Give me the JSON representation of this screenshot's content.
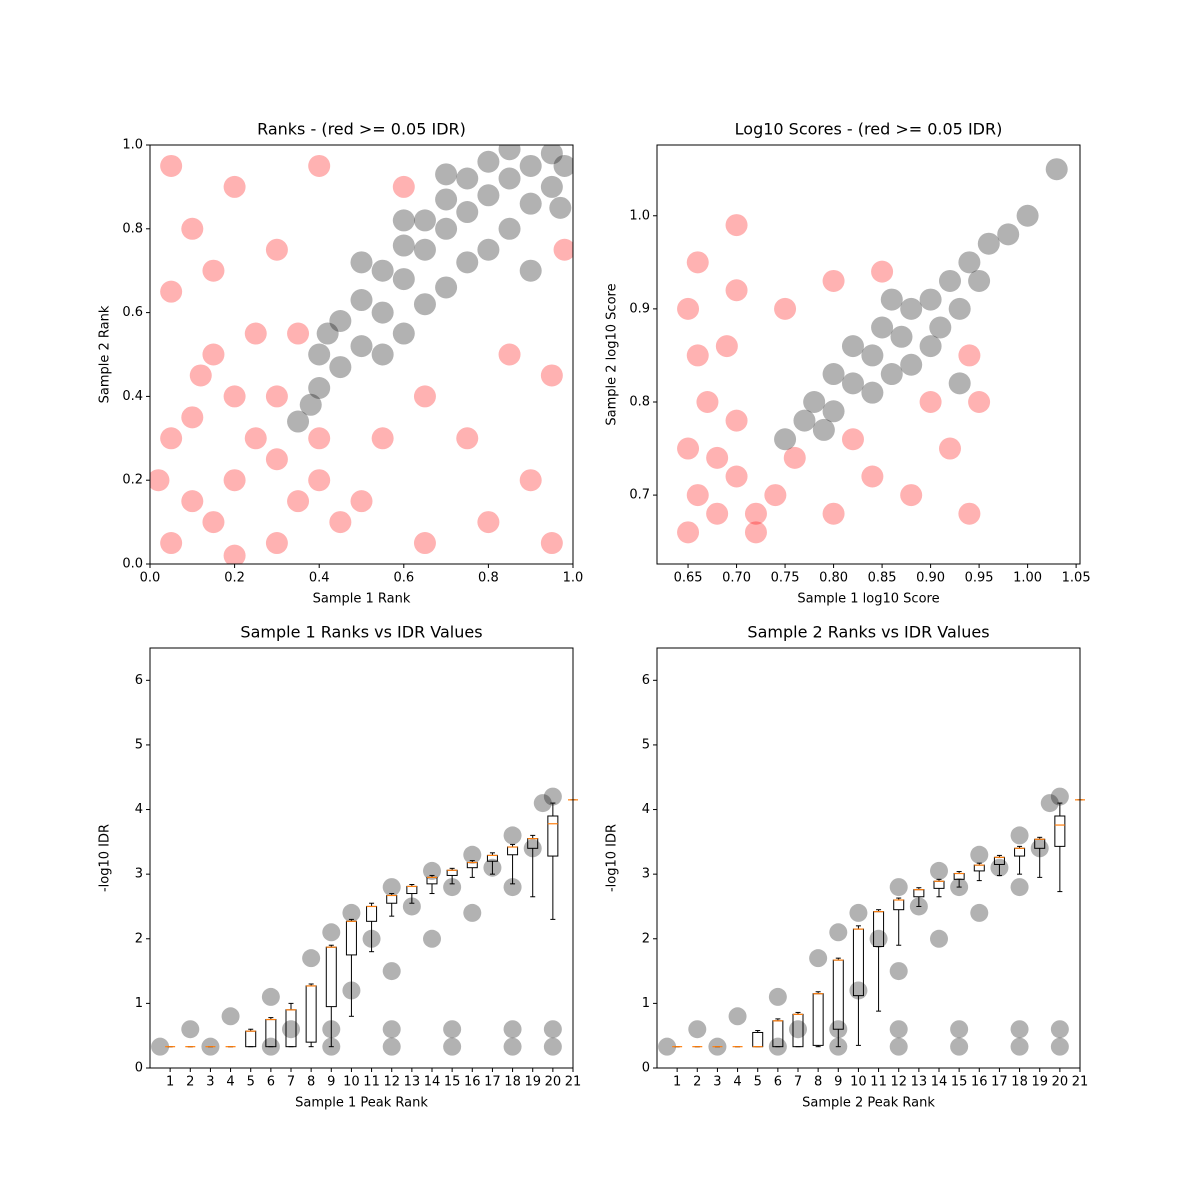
{
  "chart_data": [
    {
      "type": "scatter",
      "title": "Ranks - (red >= 0.05 IDR)",
      "x_label": "Sample 1 Rank",
      "y_label": "Sample 2 Rank",
      "xlim": [
        0,
        1
      ],
      "ylim": [
        0,
        1
      ],
      "xticks": [
        {
          "value": 0,
          "label": "0.0"
        },
        0.2,
        0.4,
        0.6,
        0.8,
        {
          "value": 1,
          "label": "1.0"
        }
      ],
      "yticks": [
        {
          "value": 0,
          "label": "0.0"
        },
        0.2,
        0.4,
        0.6,
        0.8,
        {
          "value": 1,
          "label": "1.0"
        }
      ],
      "series": [
        {
          "color": "#ff0000",
          "x": [
            0.05,
            0.1,
            0.15,
            0.2,
            0.25,
            0.3,
            0.05,
            0.1,
            0.3,
            0.35,
            0.2,
            0.4,
            0.15,
            0.5,
            0.25,
            0.55,
            0.05,
            0.65,
            0.1,
            0.8,
            0.2,
            0.9,
            0.3,
            0.75,
            0.4,
            0.95,
            0.05,
            0.95,
            0.6,
            0.85,
            0.3,
            0.4,
            0.12,
            0.45,
            0.02,
            0.2,
            0.35,
            0.65,
            0.98,
            0.15
          ],
          "y": [
            0.05,
            0.15,
            0.1,
            0.2,
            0.3,
            0.25,
            0.3,
            0.35,
            0.05,
            0.15,
            0.4,
            0.2,
            0.5,
            0.15,
            0.55,
            0.3,
            0.65,
            0.05,
            0.8,
            0.1,
            0.9,
            0.2,
            0.75,
            0.3,
            0.95,
            0.45,
            0.95,
            0.05,
            0.9,
            0.5,
            0.4,
            0.3,
            0.45,
            0.1,
            0.2,
            0.02,
            0.55,
            0.4,
            0.75,
            0.7
          ]
        },
        {
          "color": "#000000",
          "x": [
            0.35,
            0.4,
            0.4,
            0.45,
            0.45,
            0.5,
            0.5,
            0.55,
            0.55,
            0.6,
            0.6,
            0.6,
            0.65,
            0.65,
            0.65,
            0.7,
            0.7,
            0.7,
            0.75,
            0.75,
            0.75,
            0.8,
            0.8,
            0.8,
            0.85,
            0.85,
            0.85,
            0.9,
            0.9,
            0.95,
            0.95,
            0.98,
            0.5,
            0.6,
            0.9,
            0.55,
            0.38,
            0.42,
            0.7,
            0.97
          ],
          "y": [
            0.34,
            0.42,
            0.5,
            0.47,
            0.58,
            0.52,
            0.63,
            0.6,
            0.7,
            0.55,
            0.68,
            0.76,
            0.62,
            0.75,
            0.82,
            0.66,
            0.8,
            0.87,
            0.72,
            0.84,
            0.92,
            0.75,
            0.88,
            0.96,
            0.8,
            0.92,
            0.99,
            0.86,
            0.95,
            0.9,
            0.98,
            0.95,
            0.72,
            0.82,
            0.7,
            0.5,
            0.38,
            0.55,
            0.93,
            0.85
          ]
        }
      ]
    },
    {
      "type": "scatter",
      "title": "Log10 Scores - (red >= 0.05 IDR)",
      "x_label": "Sample 1 log10 Score",
      "y_label": "Sample 2 log10 Score",
      "xlim": [
        0.618,
        1.054
      ],
      "ylim": [
        0.626,
        1.076
      ],
      "xticks": [
        0.65,
        {
          "value": 0.7,
          "label": "0.70"
        },
        0.75,
        {
          "value": 0.8,
          "label": "0.80"
        },
        0.85,
        {
          "value": 0.9,
          "label": "0.90"
        },
        0.95,
        {
          "value": 1,
          "label": "1.00"
        },
        1.05
      ],
      "yticks": [
        0.7,
        0.8,
        0.9,
        {
          "value": 1,
          "label": "1.0"
        }
      ],
      "series": [
        {
          "color": "#ff0000",
          "x": [
            0.65,
            0.66,
            0.68,
            0.7,
            0.72,
            0.65,
            0.67,
            0.66,
            0.65,
            0.66,
            0.7,
            0.74,
            0.76,
            0.8,
            0.84,
            0.88,
            0.92,
            0.94,
            0.95,
            0.9,
            0.7,
            0.75,
            0.8,
            0.85,
            0.69,
            0.72,
            0.68,
            0.7,
            0.94,
            0.82
          ],
          "y": [
            0.66,
            0.7,
            0.68,
            0.72,
            0.66,
            0.75,
            0.8,
            0.85,
            0.9,
            0.95,
            0.78,
            0.7,
            0.74,
            0.68,
            0.72,
            0.7,
            0.75,
            0.68,
            0.8,
            0.8,
            0.92,
            0.9,
            0.93,
            0.94,
            0.86,
            0.68,
            0.74,
            0.99,
            0.85,
            0.76
          ]
        },
        {
          "color": "#000000",
          "x": [
            0.75,
            0.77,
            0.78,
            0.8,
            0.8,
            0.82,
            0.82,
            0.84,
            0.84,
            0.85,
            0.86,
            0.87,
            0.88,
            0.88,
            0.9,
            0.9,
            0.91,
            0.92,
            0.93,
            0.94,
            0.95,
            0.96,
            0.98,
            1.0,
            1.03,
            0.86,
            0.93,
            0.79
          ],
          "y": [
            0.76,
            0.78,
            0.8,
            0.79,
            0.83,
            0.82,
            0.86,
            0.81,
            0.85,
            0.88,
            0.83,
            0.87,
            0.9,
            0.84,
            0.86,
            0.91,
            0.88,
            0.93,
            0.9,
            0.95,
            0.93,
            0.97,
            0.98,
            1.0,
            1.05,
            0.91,
            0.82,
            0.77
          ]
        }
      ]
    },
    {
      "type": "box",
      "title": "Sample 1 Ranks vs IDR Values",
      "x_label": "Sample 1 Peak Rank",
      "y_label": "-log10 IDR",
      "xlim": [
        0,
        21
      ],
      "ylim": [
        0,
        6.5
      ],
      "xticks": [
        1,
        2,
        3,
        4,
        5,
        6,
        7,
        8,
        9,
        10,
        11,
        12,
        13,
        14,
        15,
        16,
        17,
        18,
        19,
        20,
        21
      ],
      "yticks": [
        0,
        1,
        2,
        3,
        4,
        5,
        6
      ],
      "series": [
        {
          "color": "#000000",
          "x": [
            0.5,
            3,
            6,
            9,
            12,
            15,
            18,
            20,
            2,
            4,
            6,
            8,
            9,
            10,
            12,
            14,
            16,
            18,
            19.5,
            20,
            7,
            9,
            12,
            15,
            18,
            20,
            10,
            12,
            14,
            16,
            18,
            11,
            13,
            15,
            17,
            19
          ],
          "y": [
            0.33,
            0.33,
            0.33,
            0.33,
            0.33,
            0.33,
            0.33,
            0.33,
            0.6,
            0.8,
            1.1,
            1.7,
            2.1,
            2.4,
            2.8,
            3.05,
            3.3,
            3.6,
            4.1,
            4.2,
            0.6,
            0.6,
            0.6,
            0.6,
            0.6,
            0.6,
            1.2,
            1.5,
            2.0,
            2.4,
            2.8,
            2.0,
            2.5,
            2.8,
            3.1,
            3.4
          ]
        }
      ],
      "boxes": {
        "positions": [
          1,
          2,
          3,
          4,
          5,
          6,
          7,
          8,
          9,
          10,
          11,
          12,
          13,
          14,
          15,
          16,
          17,
          18,
          19,
          20,
          21
        ],
        "median": [
          0.33,
          0.33,
          0.33,
          0.33,
          0.57,
          0.75,
          0.9,
          1.27,
          1.87,
          2.27,
          2.5,
          2.67,
          2.81,
          2.95,
          3.06,
          3.18,
          3.29,
          3.42,
          3.55,
          3.78,
          4.15
        ],
        "q1": [
          0.33,
          0.33,
          0.33,
          0.33,
          0.33,
          0.33,
          0.33,
          0.4,
          0.95,
          1.75,
          2.27,
          2.55,
          2.7,
          2.85,
          2.98,
          3.1,
          3.2,
          3.3,
          3.4,
          3.28,
          4.15
        ],
        "q3": [
          0.33,
          0.33,
          0.33,
          0.33,
          0.57,
          0.75,
          0.9,
          1.27,
          1.87,
          2.27,
          2.5,
          2.67,
          2.81,
          2.95,
          3.06,
          3.18,
          3.29,
          3.42,
          3.55,
          3.9,
          4.15
        ],
        "whislo": [
          0.33,
          0.33,
          0.33,
          0.33,
          0.33,
          0.33,
          0.33,
          0.33,
          0.33,
          0.8,
          1.8,
          2.35,
          2.55,
          2.7,
          2.85,
          2.95,
          3.0,
          2.85,
          2.65,
          2.3,
          4.15
        ],
        "whishi": [
          0.33,
          0.33,
          0.33,
          0.33,
          0.6,
          0.78,
          1.0,
          1.3,
          1.9,
          2.3,
          2.55,
          2.7,
          2.84,
          2.98,
          3.09,
          3.21,
          3.33,
          3.46,
          3.6,
          4.1,
          4.15
        ]
      }
    },
    {
      "type": "box",
      "title": "Sample 2 Ranks vs IDR Values",
      "x_label": "Sample 2 Peak Rank",
      "y_label": "-log10 IDR",
      "xlim": [
        0,
        21
      ],
      "ylim": [
        0,
        6.5
      ],
      "xticks": [
        1,
        2,
        3,
        4,
        5,
        6,
        7,
        8,
        9,
        10,
        11,
        12,
        13,
        14,
        15,
        16,
        17,
        18,
        19,
        20,
        21
      ],
      "yticks": [
        0,
        1,
        2,
        3,
        4,
        5,
        6
      ],
      "series": [
        {
          "color": "#000000",
          "x": [
            0.5,
            3,
            6,
            9,
            12,
            15,
            18,
            20,
            2,
            4,
            6,
            8,
            9,
            10,
            12,
            14,
            16,
            18,
            19.5,
            20,
            7,
            9,
            12,
            15,
            18,
            20,
            10,
            12,
            14,
            16,
            18,
            11,
            13,
            15,
            17,
            19
          ],
          "y": [
            0.33,
            0.33,
            0.33,
            0.33,
            0.33,
            0.33,
            0.33,
            0.33,
            0.6,
            0.8,
            1.1,
            1.7,
            2.1,
            2.4,
            2.8,
            3.05,
            3.3,
            3.6,
            4.1,
            4.2,
            0.6,
            0.6,
            0.6,
            0.6,
            0.6,
            0.6,
            1.2,
            1.5,
            2.0,
            2.4,
            2.8,
            2.0,
            2.5,
            2.8,
            3.1,
            3.4
          ]
        }
      ],
      "boxes": {
        "positions": [
          1,
          2,
          3,
          4,
          5,
          6,
          7,
          8,
          9,
          10,
          11,
          12,
          13,
          14,
          15,
          16,
          17,
          18,
          19,
          20,
          21
        ],
        "median": [
          0.33,
          0.33,
          0.33,
          0.33,
          0.33,
          0.73,
          0.83,
          1.15,
          1.67,
          2.15,
          2.42,
          2.6,
          2.76,
          2.89,
          3.01,
          3.14,
          3.26,
          3.4,
          3.54,
          3.76,
          4.15
        ],
        "q1": [
          0.33,
          0.33,
          0.33,
          0.33,
          0.33,
          0.33,
          0.33,
          0.35,
          0.6,
          1.12,
          1.88,
          2.45,
          2.65,
          2.78,
          2.92,
          3.05,
          3.15,
          3.28,
          3.4,
          3.43,
          4.15
        ],
        "q3": [
          0.33,
          0.33,
          0.33,
          0.33,
          0.55,
          0.73,
          0.83,
          1.15,
          1.67,
          2.15,
          2.42,
          2.6,
          2.76,
          2.89,
          3.01,
          3.14,
          3.26,
          3.4,
          3.54,
          3.9,
          4.15
        ],
        "whislo": [
          0.33,
          0.33,
          0.33,
          0.33,
          0.33,
          0.33,
          0.33,
          0.33,
          0.33,
          0.35,
          0.88,
          1.9,
          2.5,
          2.65,
          2.8,
          2.9,
          2.98,
          3.0,
          2.95,
          2.73,
          4.15
        ],
        "whishi": [
          0.33,
          0.33,
          0.33,
          0.33,
          0.58,
          0.76,
          0.86,
          1.18,
          1.7,
          2.2,
          2.45,
          2.63,
          2.79,
          2.92,
          3.04,
          3.17,
          3.29,
          3.43,
          3.57,
          4.1,
          4.15
        ]
      }
    }
  ]
}
